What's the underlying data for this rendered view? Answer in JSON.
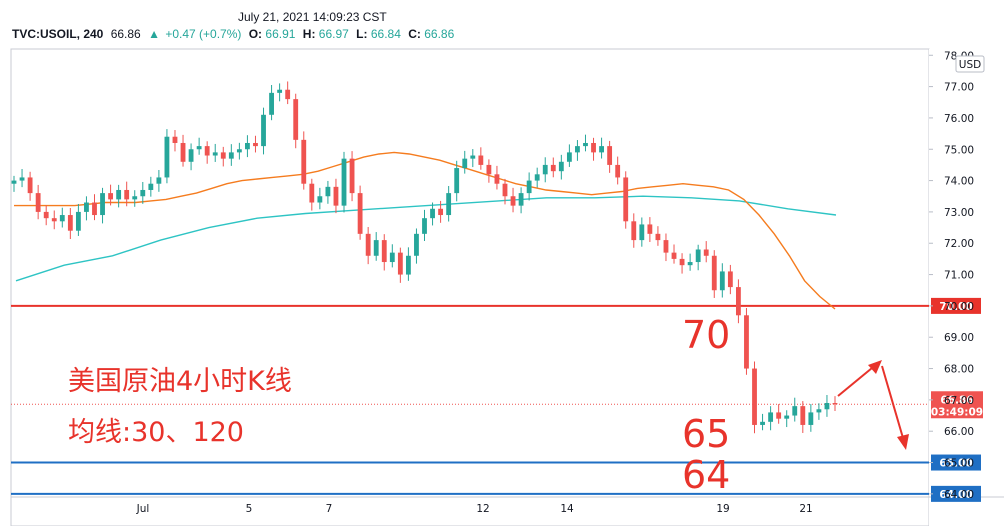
{
  "header": {
    "datetime": "July 21, 2021 14:09:23 CST",
    "symbol": "TVC:USOIL, 240",
    "last": "66.86",
    "change": "+0.47 (+0.7%)",
    "o_label": "O:",
    "o_value": "66.91",
    "h_label": "H:",
    "h_value": "66.97",
    "l_label": "L:",
    "l_value": "66.84",
    "c_label": "C:",
    "c_value": "66.86"
  },
  "colors": {
    "up": "#26a69a",
    "down": "#ef5350",
    "ma30": "#f57c1f",
    "ma120": "#2ec4c4",
    "resistance": "#e8332b",
    "support": "#1f6fc4",
    "annotation": "#e8332b"
  },
  "chart_data": {
    "type": "candlestick",
    "currency_label": "USD",
    "y_ticks": [
      "78.00",
      "77.00",
      "76.00",
      "75.00",
      "74.00",
      "73.00",
      "72.00",
      "71.00",
      "70.00",
      "69.00",
      "68.00",
      "67.00",
      "66.00",
      "65.00",
      "64.00"
    ],
    "ylim": [
      63.9,
      78.2
    ],
    "x_ticks": [
      {
        "label": "Jul",
        "date": "2021-07-01"
      },
      {
        "label": "5",
        "date": "2021-07-05"
      },
      {
        "label": "7",
        "date": "2021-07-07"
      },
      {
        "label": "12",
        "date": "2021-07-12"
      },
      {
        "label": "14",
        "date": "2021-07-14"
      },
      {
        "label": "19",
        "date": "2021-07-19"
      },
      {
        "label": "21",
        "date": "2021-07-21"
      }
    ],
    "closes": [
      74.0,
      74.1,
      73.6,
      73.0,
      72.8,
      72.7,
      72.9,
      72.4,
      73.0,
      73.3,
      72.9,
      73.6,
      73.4,
      73.7,
      73.4,
      73.5,
      73.7,
      73.9,
      74.1,
      75.4,
      75.2,
      74.6,
      75.0,
      75.1,
      74.8,
      74.9,
      74.7,
      74.9,
      75.0,
      75.2,
      75.1,
      76.1,
      76.8,
      76.9,
      76.6,
      75.3,
      73.9,
      73.3,
      73.5,
      73.8,
      73.2,
      74.7,
      73.6,
      72.3,
      71.6,
      72.1,
      71.4,
      71.7,
      71.0,
      71.6,
      72.3,
      72.8,
      73.1,
      72.9,
      73.6,
      74.4,
      74.7,
      74.8,
      74.5,
      74.2,
      73.9,
      73.5,
      73.2,
      73.6,
      74.0,
      74.2,
      74.5,
      74.3,
      74.6,
      74.9,
      75.1,
      75.2,
      74.9,
      75.1,
      74.5,
      74.1,
      72.7,
      72.1,
      72.6,
      72.3,
      72.1,
      71.7,
      71.5,
      71.3,
      71.4,
      71.8,
      71.6,
      70.5,
      71.1,
      70.6,
      69.7,
      68.0,
      66.2,
      66.3,
      66.6,
      66.4,
      66.5,
      66.8,
      66.2,
      66.6,
      66.7,
      66.9,
      66.86
    ],
    "ma30": [
      73.2,
      73.2,
      73.2,
      73.2,
      73.2,
      73.25,
      73.3,
      73.3,
      73.3,
      73.35,
      73.4,
      73.5,
      73.6,
      73.75,
      73.9,
      74.0,
      74.05,
      74.1,
      74.15,
      74.2,
      74.3,
      74.45,
      74.6,
      74.75,
      74.85,
      74.9,
      74.85,
      74.75,
      74.65,
      74.5,
      74.35,
      74.2,
      74.05,
      73.9,
      73.8,
      73.7,
      73.65,
      73.6,
      73.55,
      73.6,
      73.65,
      73.75,
      73.8,
      73.85,
      73.9,
      73.85,
      73.8,
      73.7,
      73.4,
      72.9,
      72.3,
      71.6,
      70.8,
      70.3,
      69.9
    ],
    "ma120": [
      70.8,
      71.3,
      71.6,
      72.1,
      72.5,
      72.8,
      72.95,
      73.05,
      73.15,
      73.25,
      73.35,
      73.45,
      73.45,
      73.5,
      73.45,
      73.35,
      73.1,
      72.9
    ],
    "levels": [
      {
        "value": 70.0,
        "label": "70.00",
        "kind": "resistance"
      },
      {
        "value": 65.0,
        "label": "65.00",
        "kind": "support"
      },
      {
        "value": 64.0,
        "label": "64.00",
        "kind": "support"
      }
    ],
    "last_price": {
      "value": 66.86,
      "label": "66.86",
      "countdown": "03:49:09"
    },
    "annotations": {
      "title_line1": "美国原油4小时K线",
      "title_line2": "均线:30、120",
      "label_70": "70",
      "label_65": "65",
      "label_64": "64"
    }
  }
}
